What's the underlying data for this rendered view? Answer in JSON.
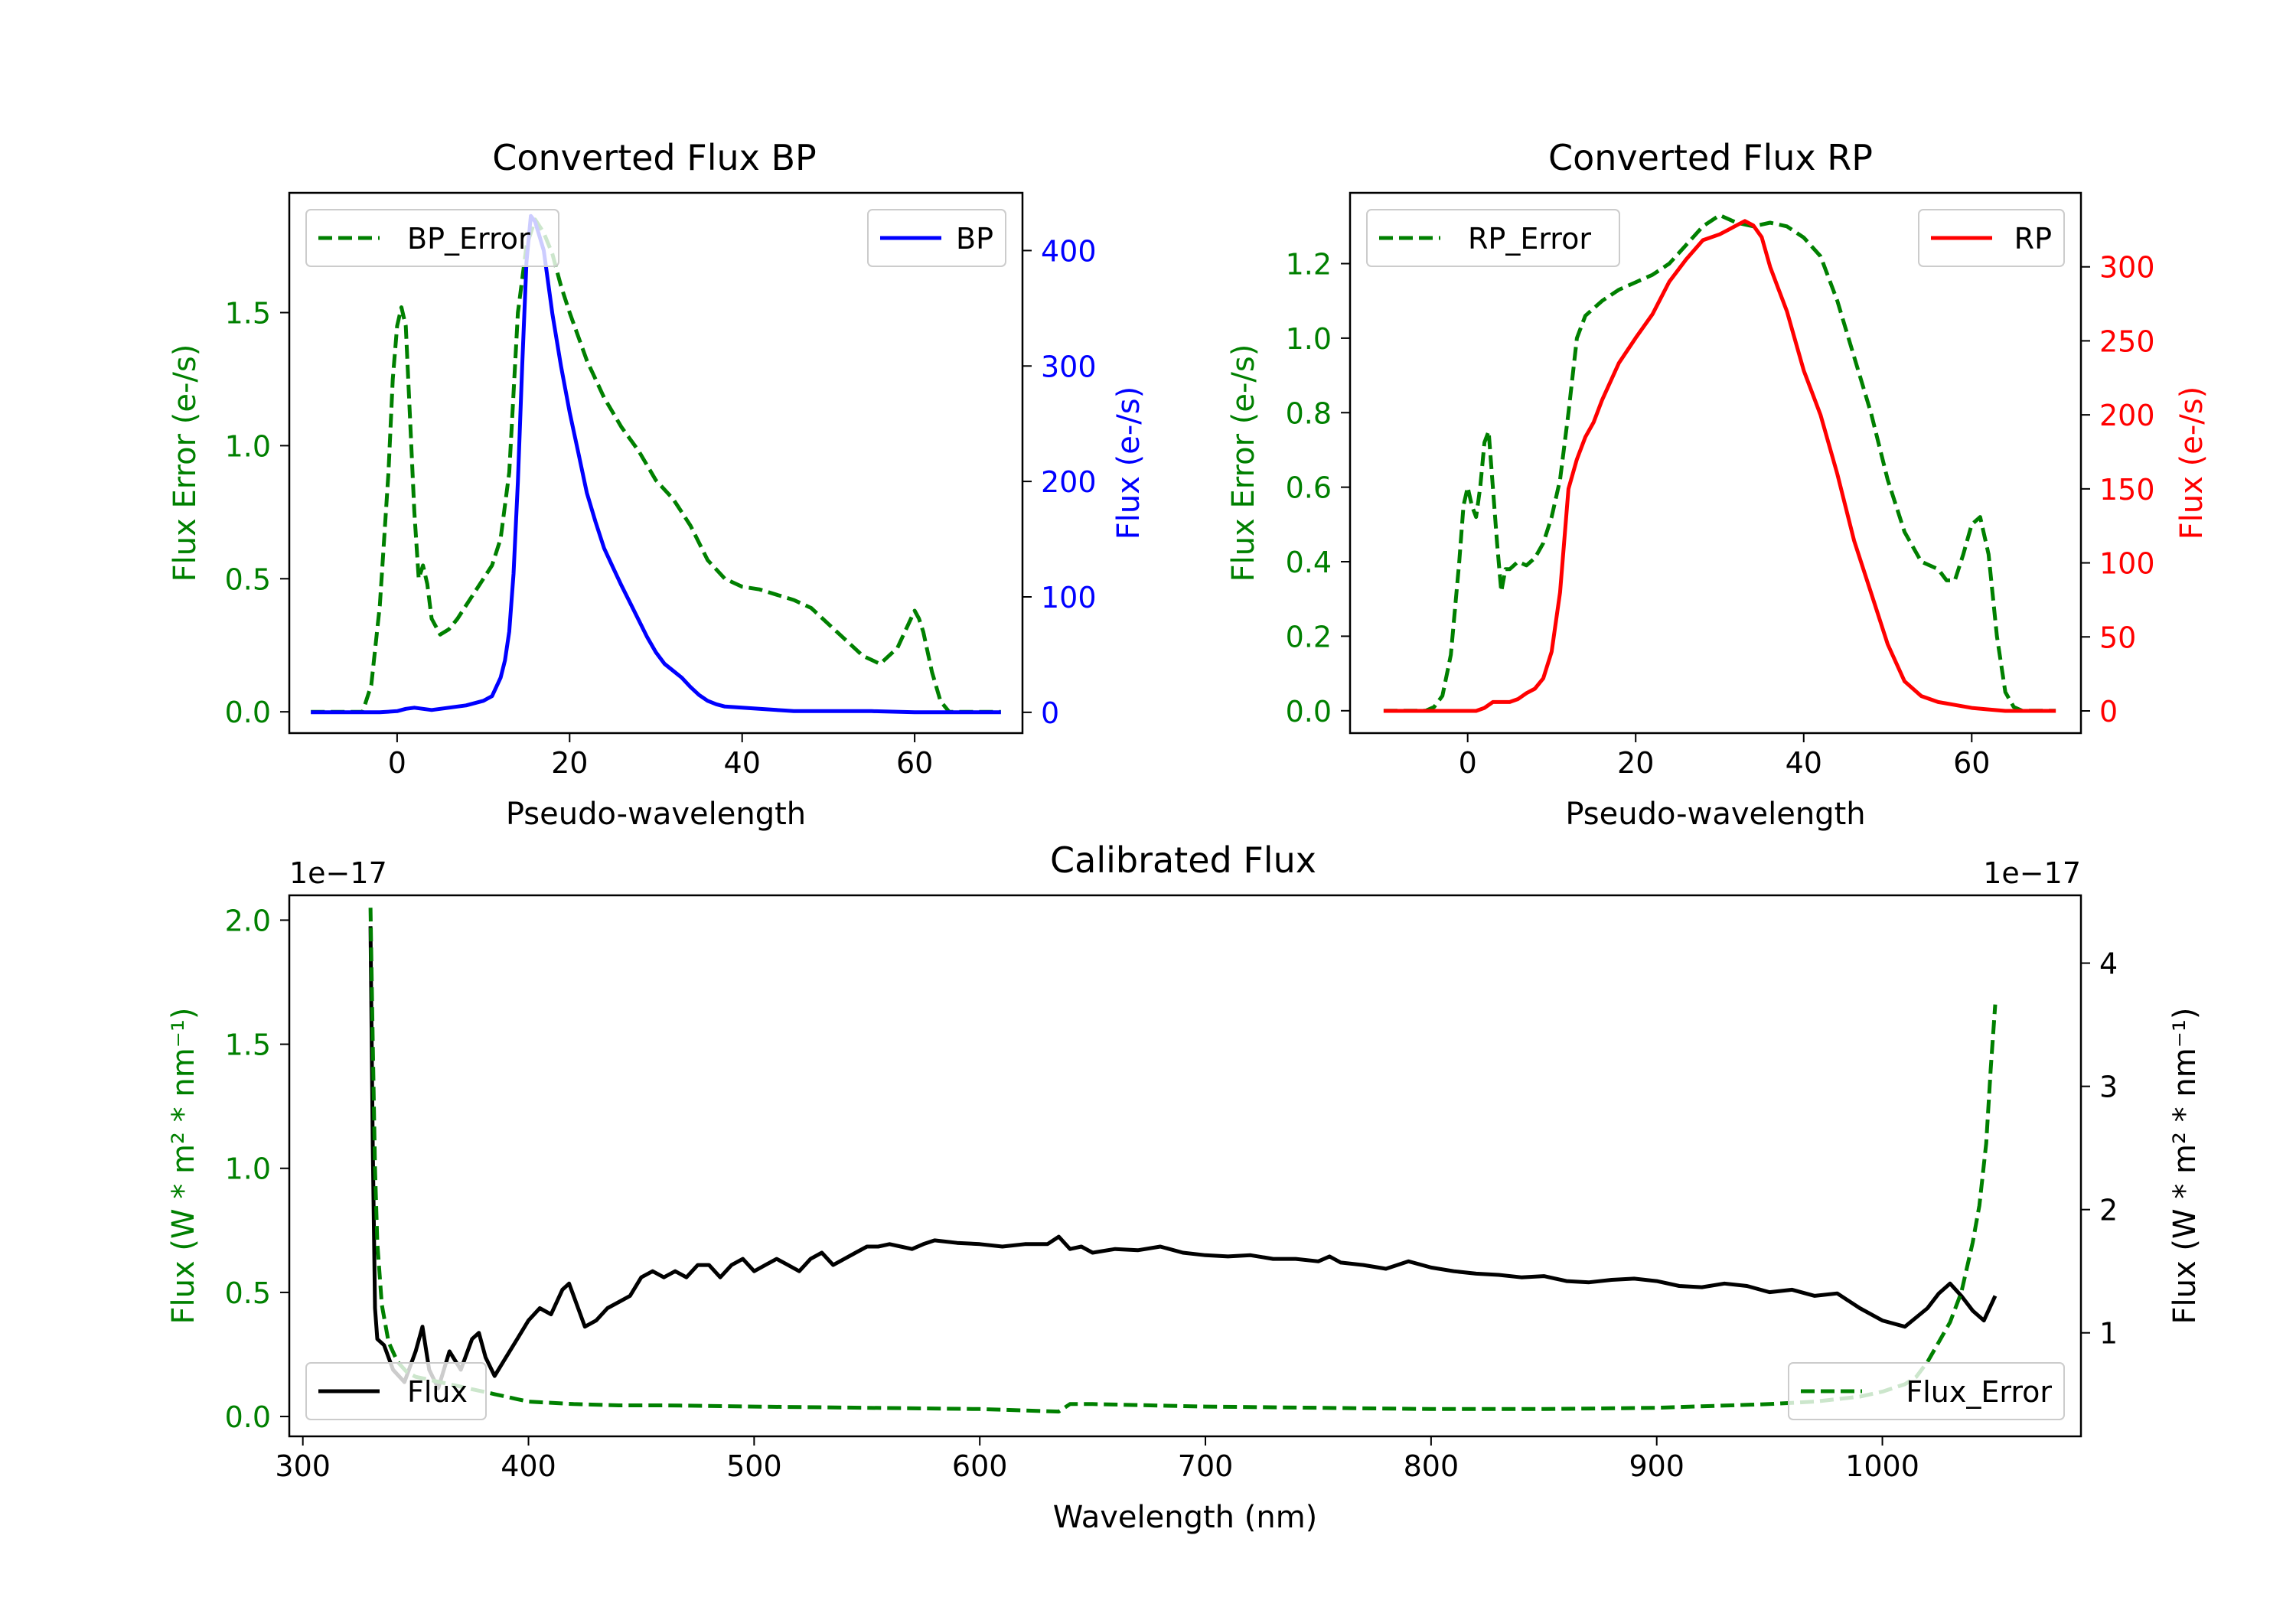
{
  "chart_data": [
    {
      "id": "bp",
      "type": "line",
      "title": "Converted Flux BP",
      "xlabel": "Pseudo-wavelength",
      "ylabel_left": "Flux Error (e-/s)",
      "ylabel_right": "Flux (e-/s)",
      "xlim": [
        -12.5,
        72.5
      ],
      "ylim_left": [
        -0.08,
        1.95
      ],
      "ylim_right": [
        -18,
        450
      ],
      "xticks": [
        0,
        20,
        40,
        60
      ],
      "yticks_left": [
        0.0,
        0.5,
        1.0,
        1.5
      ],
      "yticks_right": [
        0,
        100,
        200,
        300,
        400
      ],
      "left_color": "#008000",
      "right_color": "#0000ff",
      "legend_left": "BP_Error",
      "legend_right": "BP",
      "series": [
        {
          "name": "BP_Error",
          "axis": "left",
          "style": "dashed",
          "color": "#008000",
          "x": [
            -10,
            -4,
            -3,
            -2,
            -1,
            -0.5,
            0,
            0.5,
            1,
            1.5,
            2,
            2.5,
            3,
            3.5,
            4,
            5,
            6,
            7,
            8,
            9,
            10,
            11,
            12,
            13,
            14,
            15,
            16,
            17,
            18,
            19,
            20,
            22,
            24,
            26,
            28,
            30,
            32,
            34,
            36,
            38,
            40,
            42,
            44,
            46,
            48,
            50,
            52,
            54,
            56,
            58,
            59,
            60,
            60.5,
            61,
            62,
            63,
            64,
            65,
            66,
            67,
            68,
            69,
            70
          ],
          "values": [
            0,
            0,
            0.1,
            0.4,
            0.9,
            1.25,
            1.45,
            1.52,
            1.45,
            1.1,
            0.75,
            0.5,
            0.55,
            0.48,
            0.35,
            0.29,
            0.31,
            0.35,
            0.4,
            0.45,
            0.5,
            0.55,
            0.65,
            0.9,
            1.5,
            1.75,
            1.85,
            1.8,
            1.72,
            1.6,
            1.5,
            1.32,
            1.18,
            1.07,
            0.98,
            0.87,
            0.8,
            0.7,
            0.57,
            0.5,
            0.47,
            0.46,
            0.44,
            0.42,
            0.39,
            0.33,
            0.27,
            0.21,
            0.18,
            0.24,
            0.31,
            0.38,
            0.35,
            0.3,
            0.15,
            0.04,
            0,
            0,
            0,
            0,
            0,
            0,
            0
          ]
        },
        {
          "name": "BP",
          "axis": "right",
          "style": "solid",
          "color": "#0000ff",
          "x": [
            -10,
            -6,
            -4,
            -2,
            0,
            1,
            2,
            3,
            4,
            6,
            8,
            9,
            10,
            11,
            12,
            12.5,
            13,
            13.5,
            14,
            14.5,
            15,
            15.5,
            16,
            17,
            18,
            19,
            20,
            21,
            22,
            23,
            24,
            25,
            26,
            27,
            28,
            29,
            30,
            31,
            32,
            33,
            34,
            35,
            36,
            37,
            38,
            40,
            42,
            44,
            46,
            50,
            55,
            60,
            65,
            70
          ],
          "values": [
            0,
            0,
            0,
            0,
            1,
            3,
            4,
            3,
            2,
            4,
            6,
            8,
            10,
            14,
            30,
            45,
            70,
            120,
            200,
            300,
            390,
            430,
            425,
            400,
            345,
            300,
            260,
            225,
            190,
            165,
            142,
            126,
            110,
            95,
            80,
            65,
            52,
            42,
            36,
            30,
            22,
            15,
            10,
            7,
            5,
            4,
            3,
            2,
            1,
            1,
            1,
            0,
            0,
            0
          ]
        }
      ]
    },
    {
      "id": "rp",
      "type": "line",
      "title": "Converted Flux RP",
      "xlabel": "Pseudo-wavelength",
      "ylabel_left": "Flux Error (e-/s)",
      "ylabel_right": "Flux (e-/s)",
      "xlim": [
        -14,
        73
      ],
      "ylim_left": [
        -0.06,
        1.39
      ],
      "ylim_right": [
        -15,
        350
      ],
      "xticks": [
        0,
        20,
        40,
        60
      ],
      "yticks_left": [
        0.0,
        0.2,
        0.4,
        0.6,
        0.8,
        1.0,
        1.2
      ],
      "yticks_right": [
        0,
        50,
        100,
        150,
        200,
        250,
        300
      ],
      "left_color": "#008000",
      "right_color": "#ff0000",
      "legend_left": "RP_Error",
      "legend_right": "RP",
      "series": [
        {
          "name": "RP_Error",
          "axis": "left",
          "style": "dashed",
          "color": "#008000",
          "x": [
            -10,
            -5,
            -4,
            -3,
            -2,
            -1,
            -0.5,
            0,
            0.5,
            1,
            1.5,
            2,
            2.5,
            3,
            3.5,
            4,
            4.5,
            5,
            6,
            7,
            8,
            9,
            10,
            11,
            12,
            13,
            14,
            15,
            16,
            18,
            20,
            22,
            24,
            26,
            28,
            30,
            32,
            34,
            36,
            38,
            40,
            42,
            44,
            46,
            48,
            50,
            52,
            54,
            55,
            56,
            57,
            58,
            59,
            60,
            61,
            62,
            63,
            64,
            65,
            66,
            68,
            70
          ],
          "values": [
            0,
            0,
            0.01,
            0.04,
            0.15,
            0.4,
            0.55,
            0.6,
            0.55,
            0.52,
            0.6,
            0.72,
            0.75,
            0.6,
            0.45,
            0.32,
            0.38,
            0.38,
            0.4,
            0.39,
            0.41,
            0.45,
            0.52,
            0.62,
            0.8,
            1.0,
            1.06,
            1.08,
            1.1,
            1.13,
            1.15,
            1.17,
            1.2,
            1.25,
            1.3,
            1.33,
            1.31,
            1.3,
            1.31,
            1.3,
            1.27,
            1.22,
            1.1,
            0.95,
            0.8,
            0.62,
            0.48,
            0.4,
            0.39,
            0.38,
            0.35,
            0.35,
            0.42,
            0.5,
            0.52,
            0.42,
            0.2,
            0.05,
            0.01,
            0,
            0,
            0
          ]
        },
        {
          "name": "RP",
          "axis": "right",
          "style": "solid",
          "color": "#ff0000",
          "x": [
            -10,
            -4,
            -2,
            0,
            1,
            2,
            3,
            4,
            5,
            6,
            7,
            8,
            9,
            10,
            11,
            12,
            13,
            14,
            15,
            16,
            18,
            20,
            22,
            24,
            26,
            28,
            30,
            31,
            32,
            33,
            34,
            35,
            36,
            37,
            38,
            39,
            40,
            42,
            44,
            46,
            48,
            50,
            52,
            54,
            56,
            58,
            60,
            62,
            64,
            66,
            68,
            70
          ],
          "values": [
            0,
            0,
            0,
            0,
            0,
            2,
            6,
            6,
            6,
            8,
            12,
            15,
            22,
            40,
            80,
            150,
            170,
            185,
            195,
            210,
            235,
            252,
            268,
            290,
            305,
            318,
            322,
            325,
            328,
            331,
            328,
            320,
            300,
            285,
            270,
            250,
            230,
            200,
            160,
            115,
            80,
            45,
            20,
            10,
            6,
            4,
            2,
            1,
            0,
            0,
            0,
            0
          ]
        }
      ]
    },
    {
      "id": "cal",
      "type": "line",
      "title": "Calibrated Flux",
      "xlabel": "Wavelength (nm)",
      "ylabel_left": "Flux (W * m² * nm⁻¹)",
      "ylabel_right": "Flux (W * m² * nm⁻¹)",
      "offset_label_left": "1e−17",
      "offset_label_right": "1e−17",
      "xlim": [
        294,
        1088
      ],
      "ylim_left": [
        -0.08,
        2.1
      ],
      "ylim_right": [
        0.16,
        4.55
      ],
      "xticks": [
        300,
        400,
        500,
        600,
        700,
        800,
        900,
        1000
      ],
      "yticks_left": [
        0.0,
        0.5,
        1.0,
        1.5,
        2.0
      ],
      "yticks_right": [
        1,
        2,
        3,
        4
      ],
      "left_color": "#008000",
      "right_color": "#000000",
      "legend_left": "Flux",
      "legend_right": "Flux_Error",
      "series": [
        {
          "name": "Flux",
          "axis": "right",
          "style": "solid",
          "color": "#000000",
          "x": [
            330,
            331,
            332,
            333,
            336,
            340,
            345,
            350,
            353,
            356,
            360,
            365,
            370,
            375,
            378,
            381,
            385,
            390,
            395,
            400,
            405,
            410,
            415,
            418,
            420,
            425,
            430,
            435,
            440,
            445,
            450,
            455,
            460,
            465,
            470,
            475,
            480,
            485,
            490,
            495,
            500,
            505,
            510,
            515,
            520,
            525,
            530,
            535,
            540,
            545,
            550,
            555,
            560,
            565,
            570,
            575,
            580,
            590,
            600,
            610,
            620,
            630,
            635,
            640,
            645,
            650,
            660,
            670,
            680,
            690,
            700,
            710,
            720,
            730,
            740,
            750,
            755,
            760,
            770,
            780,
            790,
            800,
            810,
            820,
            830,
            840,
            850,
            860,
            870,
            880,
            890,
            900,
            910,
            920,
            930,
            940,
            950,
            960,
            970,
            980,
            990,
            1000,
            1010,
            1020,
            1025,
            1030,
            1035,
            1040,
            1045,
            1050
          ],
          "values": [
            4.3,
            2.5,
            1.2,
            0.95,
            0.9,
            0.7,
            0.6,
            0.85,
            1.05,
            0.7,
            0.55,
            0.85,
            0.7,
            0.95,
            1.0,
            0.8,
            0.65,
            0.8,
            0.95,
            1.1,
            1.2,
            1.15,
            1.35,
            1.4,
            1.3,
            1.05,
            1.1,
            1.2,
            1.25,
            1.3,
            1.45,
            1.5,
            1.45,
            1.5,
            1.45,
            1.55,
            1.55,
            1.45,
            1.55,
            1.6,
            1.5,
            1.55,
            1.6,
            1.55,
            1.5,
            1.6,
            1.65,
            1.55,
            1.6,
            1.65,
            1.7,
            1.7,
            1.72,
            1.7,
            1.68,
            1.72,
            1.75,
            1.73,
            1.72,
            1.7,
            1.72,
            1.72,
            1.78,
            1.68,
            1.7,
            1.65,
            1.68,
            1.67,
            1.7,
            1.65,
            1.63,
            1.62,
            1.63,
            1.6,
            1.6,
            1.58,
            1.62,
            1.57,
            1.55,
            1.52,
            1.58,
            1.53,
            1.5,
            1.48,
            1.47,
            1.45,
            1.46,
            1.42,
            1.41,
            1.43,
            1.44,
            1.42,
            1.38,
            1.37,
            1.4,
            1.38,
            1.33,
            1.35,
            1.3,
            1.32,
            1.2,
            1.1,
            1.05,
            1.2,
            1.32,
            1.4,
            1.3,
            1.18,
            1.1,
            1.3
          ]
        },
        {
          "name": "Flux_Error",
          "axis": "left",
          "style": "dashed",
          "color": "#008000",
          "x": [
            330,
            331,
            332,
            333,
            335,
            338,
            342,
            346,
            350,
            355,
            360,
            365,
            370,
            375,
            380,
            385,
            390,
            395,
            400,
            420,
            440,
            460,
            500,
            550,
            600,
            635,
            640,
            650,
            700,
            750,
            800,
            850,
            900,
            950,
            970,
            980,
            990,
            1000,
            1010,
            1015,
            1020,
            1025,
            1030,
            1035,
            1040,
            1043,
            1046,
            1048,
            1050
          ],
          "values": [
            2.05,
            1.5,
            1.0,
            0.7,
            0.45,
            0.3,
            0.22,
            0.18,
            0.16,
            0.15,
            0.14,
            0.13,
            0.12,
            0.11,
            0.1,
            0.09,
            0.08,
            0.07,
            0.06,
            0.05,
            0.045,
            0.045,
            0.04,
            0.035,
            0.03,
            0.02,
            0.05,
            0.05,
            0.04,
            0.035,
            0.03,
            0.03,
            0.035,
            0.05,
            0.06,
            0.07,
            0.08,
            0.1,
            0.13,
            0.16,
            0.22,
            0.3,
            0.38,
            0.5,
            0.7,
            0.85,
            1.1,
            1.4,
            1.66
          ]
        }
      ]
    }
  ]
}
